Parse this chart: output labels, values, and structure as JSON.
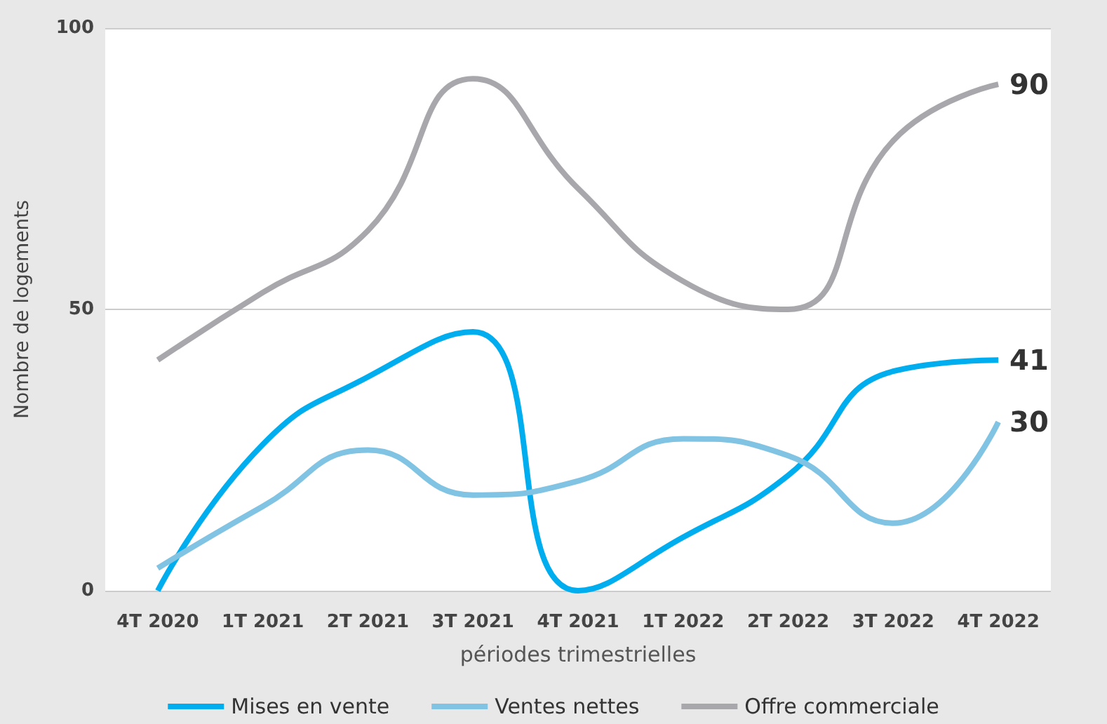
{
  "chart_data": {
    "type": "line",
    "xlabel": "périodes trimestrielles",
    "ylabel": "Nombre de logements",
    "categories": [
      "4T 2020",
      "1T 2021",
      "2T 2021",
      "3T 2021",
      "4T 2021",
      "1T 2022",
      "2T 2022",
      "3T 2022",
      "4T 2022"
    ],
    "series": [
      {
        "name": "Mises en vente",
        "color": "#00aeef",
        "values": [
          0,
          26,
          38,
          46,
          0,
          9.5,
          20.5,
          39,
          41
        ],
        "value_labels": [
          null,
          null,
          null,
          null,
          null,
          null,
          null,
          null,
          "41"
        ]
      },
      {
        "name": "Ventes nettes",
        "color": "#80c3e3",
        "values": [
          4,
          15,
          25,
          17,
          19.5,
          27,
          24,
          12,
          30
        ],
        "value_labels": [
          null,
          null,
          null,
          null,
          null,
          null,
          null,
          null,
          "30"
        ]
      },
      {
        "name": "Offre commerciale",
        "color": "#a8a7ac",
        "values": [
          41,
          53,
          64,
          91,
          71.5,
          55,
          50,
          80,
          90
        ],
        "value_labels": [
          null,
          null,
          null,
          null,
          null,
          null,
          null,
          null,
          "90"
        ]
      }
    ],
    "ylim": [
      0,
      100
    ],
    "yticks": [
      0,
      50,
      100
    ],
    "grid": "y",
    "legend": "bottom",
    "marker": "none",
    "line_style": "solid"
  }
}
